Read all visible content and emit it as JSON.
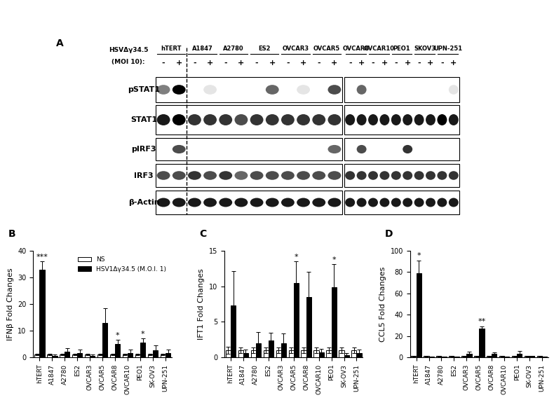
{
  "blot": {
    "panel": "A",
    "treatment_label": [
      "HSVΔγ34.5",
      "(MOI 10):"
    ],
    "treatment": [
      "-",
      "+"
    ],
    "groups": [
      {
        "cell_lines": [
          "hTERT",
          "A1847",
          "A2780",
          "ES2",
          "OVCAR3",
          "OVCAR5"
        ]
      },
      {
        "cell_lines": [
          "OVCAR8",
          "OVCAR10",
          "PEO1",
          "SKOV3",
          "UPN-251"
        ]
      }
    ],
    "rows": [
      {
        "name": "pSTAT1",
        "bands": [
          [
            0.5,
            1.0,
            0,
            0.1,
            0,
            0,
            0,
            0.6,
            0,
            0.1,
            0,
            0.7
          ],
          [
            0,
            0.6,
            0,
            0,
            0,
            0,
            0,
            0,
            0,
            0.1
          ]
        ]
      },
      {
        "name": "STAT1",
        "bands": [
          [
            0.9,
            1.0,
            0.8,
            0.8,
            0.8,
            0.7,
            0.8,
            0.8,
            0.8,
            0.8,
            0.8,
            0.8
          ],
          [
            0.9,
            0.9,
            0.9,
            0.9,
            0.9,
            0.9,
            0.9,
            0.9,
            1.0,
            0.9
          ]
        ]
      },
      {
        "name": "pIRF3",
        "bands": [
          [
            0,
            0.7,
            0,
            0,
            0,
            0,
            0,
            0,
            0,
            0,
            0,
            0.6
          ],
          [
            0,
            0.7,
            0,
            0,
            0,
            0.8,
            0,
            0,
            0,
            0
          ]
        ]
      },
      {
        "name": "IRF3",
        "bands": [
          [
            0.7,
            0.7,
            0.8,
            0.7,
            0.8,
            0.6,
            0.7,
            0.7,
            0.7,
            0.7,
            0.7,
            0.7
          ],
          [
            0.8,
            0.8,
            0.8,
            0.8,
            0.8,
            0.8,
            0.8,
            0.8,
            0.8,
            0.8
          ]
        ]
      },
      {
        "name": "β-Actin",
        "bands": [
          [
            0.9,
            0.9,
            0.9,
            0.9,
            0.9,
            0.9,
            0.9,
            0.9,
            0.9,
            0.9,
            0.9,
            0.9
          ],
          [
            0.9,
            0.9,
            0.9,
            0.9,
            0.9,
            0.9,
            0.9,
            0.9,
            0.9,
            0.9
          ]
        ]
      }
    ]
  },
  "chart_data": [
    {
      "type": "bar",
      "title": "B",
      "y_label": "IFNβ Fold Changes",
      "categories": [
        "hTERT",
        "A1847",
        "A2780",
        "ES2",
        "OVCAR3",
        "OVCAR5",
        "OVCAR8",
        "OVCAR10",
        "PEO1",
        "SK-OV3",
        "UPN-251"
      ],
      "series": [
        {
          "name": "NS",
          "color": "#ffffff",
          "values": [
            1,
            1,
            1,
            1,
            1,
            1,
            1,
            1,
            1,
            1,
            1
          ],
          "errors": [
            0.3,
            0.3,
            0.3,
            0.3,
            0.3,
            0.3,
            0.3,
            0.3,
            0.3,
            0.3,
            0.3
          ]
        },
        {
          "name": "HSV1Δγ34.5 (M.O.I. 1)",
          "color": "#000000",
          "values": [
            33,
            0.5,
            2,
            1.5,
            0.5,
            13,
            5,
            1.5,
            5.5,
            2.5,
            1.5
          ],
          "errors": [
            3,
            0.5,
            1.5,
            1.5,
            0.5,
            5.5,
            1.5,
            1.5,
            1.5,
            2,
            1.5
          ]
        }
      ],
      "annotations": [
        {
          "category": "hTERT",
          "text": "***"
        },
        {
          "category": "OVCAR8",
          "text": "*"
        },
        {
          "category": "PEO1",
          "text": "*"
        }
      ],
      "ylim": [
        0,
        40
      ],
      "yticks": [
        0,
        10,
        20,
        30,
        40
      ],
      "legend": "upper right"
    },
    {
      "type": "bar",
      "title": "C",
      "y_label": "IFT1 Fold Changes",
      "categories": [
        "hTERT",
        "A1847",
        "A2780",
        "ES2",
        "OVCAR3",
        "OVCAR5",
        "OVCAR8",
        "OVCAR10",
        "PEO1",
        "SK-OV3",
        "UPN-251"
      ],
      "series": [
        {
          "color": "#ffffff",
          "values": [
            1,
            1,
            1,
            1,
            1,
            1,
            1,
            1,
            1,
            1,
            1
          ],
          "errors": [
            0.5,
            0.4,
            0.4,
            0.4,
            0.4,
            0.4,
            0.4,
            0.4,
            0.4,
            0.4,
            0.4
          ]
        },
        {
          "color": "#000000",
          "values": [
            7.3,
            0.6,
            2,
            2.4,
            2,
            10.5,
            8.5,
            0.7,
            9.9,
            0.3,
            0.6
          ],
          "errors": [
            4.8,
            0.5,
            1.5,
            1,
            1.3,
            3,
            3.5,
            0.5,
            3.2,
            0.3,
            0.5
          ]
        }
      ],
      "annotations": [
        {
          "category": "OVCAR5",
          "text": "*"
        },
        {
          "category": "PEO1",
          "text": "*"
        }
      ],
      "ylim": [
        0,
        15
      ],
      "yticks": [
        0,
        5,
        10,
        15
      ]
    },
    {
      "type": "bar",
      "title": "D",
      "y_label": "CCL5 Fold Changes",
      "categories": [
        "hTERT",
        "A1847",
        "A2780",
        "ES2",
        "OVCAR3",
        "OVCAR5",
        "OVCAR8",
        "OVCAR10",
        "PEO1",
        "SK-OV3",
        "UPN-251"
      ],
      "series": [
        {
          "color": "#ffffff",
          "values": [
            1,
            1,
            1,
            1,
            1,
            1,
            1,
            1,
            1,
            1,
            1
          ],
          "errors": [
            0.3,
            0.3,
            0.3,
            0.3,
            0.3,
            0.3,
            0.3,
            0.3,
            0.3,
            0.3,
            0.3
          ]
        },
        {
          "color": "#000000",
          "values": [
            79,
            0.5,
            0.3,
            0.3,
            3,
            27,
            3,
            0.5,
            3,
            1,
            0.5
          ],
          "errors": [
            12,
            0.3,
            0.2,
            0.2,
            2,
            2,
            1.5,
            0.3,
            3,
            0.5,
            0.3
          ]
        }
      ],
      "annotations": [
        {
          "category": "hTERT",
          "text": "*"
        },
        {
          "category": "OVCAR5",
          "text": "**"
        }
      ],
      "ylim": [
        0,
        100
      ],
      "yticks": [
        0,
        20,
        40,
        60,
        80,
        100
      ]
    }
  ]
}
